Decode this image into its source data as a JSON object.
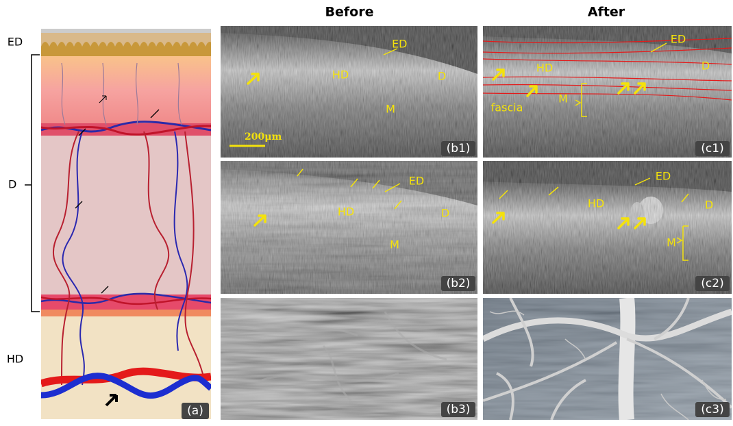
{
  "header": {
    "before": "Before",
    "after": "After"
  },
  "schematic": {
    "layers": [
      "ED",
      "D",
      "HD"
    ],
    "label": "(a)"
  },
  "panels": {
    "b1": {
      "label": "(b1)",
      "annotations": [
        "ED",
        "HD",
        "D",
        "M"
      ],
      "scale": "200μm"
    },
    "c1": {
      "label": "(c1)",
      "annotations": [
        "ED",
        "HD",
        "D",
        "M",
        "fascia"
      ]
    },
    "b2": {
      "label": "(b2)",
      "annotations": [
        "ED",
        "HD",
        "D",
        "M"
      ]
    },
    "c2": {
      "label": "(c2)",
      "annotations": [
        "ED",
        "HD",
        "D",
        "M"
      ]
    },
    "b3": {
      "label": "(b3)"
    },
    "c3": {
      "label": "(c3)"
    }
  }
}
